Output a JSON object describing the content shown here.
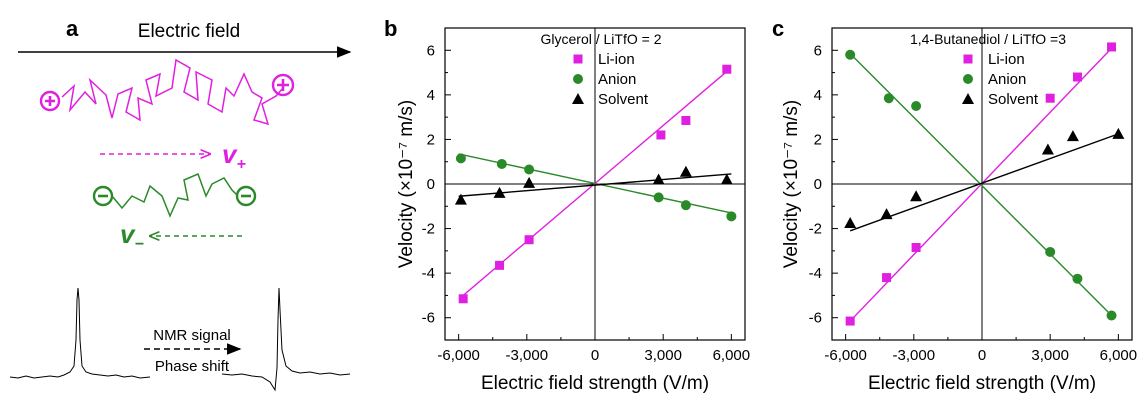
{
  "colors": {
    "li": "#e020e0",
    "anion": "#2a8a2a",
    "solvent": "#000000"
  },
  "panel_a": {
    "letter": "a",
    "field_label": "Electric field",
    "v_plus": "v",
    "v_plus_sub": "+",
    "v_minus": "v",
    "v_minus_sub": "−",
    "nmr_label": "NMR signal",
    "phase_label": "Phase shift"
  },
  "chart_data": [
    {
      "type": "scatter",
      "panel_letter": "b",
      "title": "Glycerol / LiTfO = 2",
      "xlabel": "Electric field strength (V/m)",
      "ylabel": "Velocity (×10⁻⁷ m/s)",
      "xlim": [
        -6600,
        6600
      ],
      "ylim": [
        -7,
        7
      ],
      "xticks": [
        -6000,
        -3000,
        0,
        3000,
        6000
      ],
      "xtick_labels": [
        "-6,000",
        "-3,000",
        "0",
        "3,000",
        "6,000"
      ],
      "yticks": [
        -6,
        -4,
        -2,
        0,
        2,
        4,
        6
      ],
      "ytick_labels": [
        "-6",
        "-4",
        "-2",
        "0",
        "2",
        "4",
        "6"
      ],
      "axes": "crossing at origin",
      "legend_position": "top-center",
      "series": [
        {
          "name": "Li-ion",
          "marker": "square",
          "color": "#e020e0",
          "x": [
            -5800,
            -4200,
            -2900,
            2900,
            4000,
            5800
          ],
          "y": [
            -5.15,
            -3.65,
            -2.5,
            2.2,
            2.85,
            5.15
          ],
          "fit": [
            [
              -5800,
              -5.0
            ],
            [
              5800,
              5.05
            ]
          ]
        },
        {
          "name": "Anion",
          "marker": "circle",
          "color": "#2a8a2a",
          "x": [
            -5900,
            -4100,
            -2900,
            2800,
            4000,
            6000
          ],
          "y": [
            1.15,
            0.9,
            0.65,
            -0.6,
            -0.95,
            -1.45
          ],
          "fit": [
            [
              -6000,
              1.35
            ],
            [
              6000,
              -1.3
            ]
          ]
        },
        {
          "name": "Solvent",
          "marker": "triangle",
          "color": "#000000",
          "x": [
            -5900,
            -4200,
            -2900,
            2800,
            4000,
            5800
          ],
          "y": [
            -0.7,
            -0.4,
            0.05,
            0.2,
            0.55,
            0.2
          ],
          "fit": [
            [
              -6000,
              -0.55
            ],
            [
              6000,
              0.45
            ]
          ]
        }
      ]
    },
    {
      "type": "scatter",
      "panel_letter": "c",
      "title": "1,4-Butanediol / LiTfO =3",
      "xlabel": "Electric field strength (V/m)",
      "ylabel": "Velocity (×10⁻⁷ m/s)",
      "xlim": [
        -6600,
        6600
      ],
      "ylim": [
        -7,
        7
      ],
      "xticks": [
        -6000,
        -3000,
        0,
        3000,
        6000
      ],
      "xtick_labels": [
        "-6,000",
        "-3,000",
        "0",
        "3,000",
        "6,000"
      ],
      "yticks": [
        -6,
        -4,
        -2,
        0,
        2,
        4,
        6
      ],
      "ytick_labels": [
        "-6",
        "-4",
        "-2",
        "0",
        "2",
        "4",
        "6"
      ],
      "axes": "crossing at origin",
      "legend_position": "top-center",
      "series": [
        {
          "name": "Li-ion",
          "marker": "square",
          "color": "#e020e0",
          "x": [
            -5800,
            -4200,
            -2900,
            3000,
            4200,
            5700
          ],
          "y": [
            -6.15,
            -4.2,
            -2.85,
            3.85,
            4.8,
            6.15
          ],
          "fit": [
            [
              -5800,
              -6.15
            ],
            [
              5800,
              6.2
            ]
          ]
        },
        {
          "name": "Anion",
          "marker": "circle",
          "color": "#2a8a2a",
          "x": [
            -5800,
            -4100,
            -2900,
            3000,
            4200,
            5700
          ],
          "y": [
            5.8,
            3.85,
            3.5,
            -3.05,
            -4.25,
            -5.9
          ],
          "fit": [
            [
              -5800,
              5.85
            ],
            [
              5800,
              -6.0
            ]
          ]
        },
        {
          "name": "Solvent",
          "marker": "triangle",
          "color": "#000000",
          "x": [
            -5800,
            -4200,
            -2900,
            2900,
            4000,
            6000
          ],
          "y": [
            -1.75,
            -1.35,
            -0.55,
            1.55,
            2.15,
            2.25
          ],
          "fit": [
            [
              -5800,
              -2.1
            ],
            [
              6000,
              2.25
            ]
          ]
        }
      ]
    }
  ]
}
